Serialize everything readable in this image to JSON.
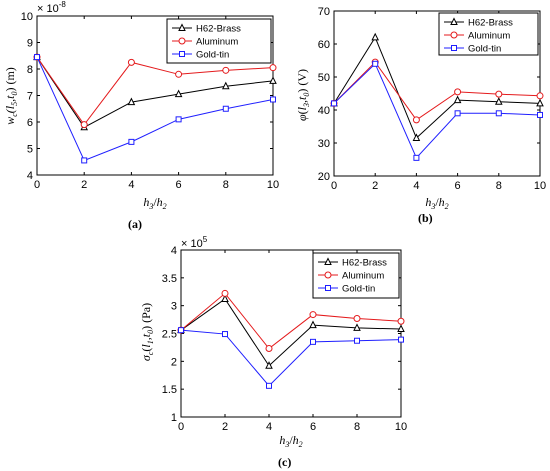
{
  "colors": {
    "H62-Brass": "#000000",
    "Aluminum": "#e41a1c",
    "Gold-tin": "#1f1fff"
  },
  "markers": {
    "H62-Brass": "triangle",
    "Aluminum": "circle",
    "Gold-tin": "square"
  },
  "chart_data": [
    {
      "type": "line",
      "caption": "(a)",
      "xlabel": "h3/h2",
      "ylabel": "wc(l5,t0) (m)",
      "multiplier": "× 10",
      "multiplier_exp": "-8",
      "x": [
        0,
        2,
        4,
        6,
        8,
        10
      ],
      "xticks": [
        "0",
        "2",
        "4",
        "6",
        "8",
        "10"
      ],
      "yticks": [
        "4",
        "5",
        "6",
        "7",
        "8",
        "9",
        "10"
      ],
      "xlim": [
        0,
        10
      ],
      "ylim": [
        4,
        10
      ],
      "legend": "top-right",
      "series": [
        {
          "name": "H62-Brass",
          "values": [
            8.45,
            5.8,
            6.75,
            7.05,
            7.35,
            7.55
          ]
        },
        {
          "name": "Aluminum",
          "values": [
            8.45,
            5.9,
            8.25,
            7.8,
            7.95,
            8.05
          ]
        },
        {
          "name": "Gold-tin",
          "values": [
            8.45,
            4.55,
            5.25,
            6.1,
            6.5,
            6.85
          ]
        }
      ]
    },
    {
      "type": "line",
      "caption": "(b)",
      "xlabel": "h3/h2",
      "ylabel": "φ(l3,t0) (V)",
      "x": [
        0,
        2,
        4,
        6,
        8,
        10
      ],
      "xticks": [
        "0",
        "2",
        "4",
        "6",
        "8",
        "10"
      ],
      "yticks": [
        "20",
        "30",
        "40",
        "50",
        "60",
        "70"
      ],
      "xlim": [
        0,
        10
      ],
      "ylim": [
        20,
        70
      ],
      "legend": "top-right",
      "series": [
        {
          "name": "H62-Brass",
          "values": [
            42,
            62,
            31.5,
            43,
            42.5,
            42
          ]
        },
        {
          "name": "Aluminum",
          "values": [
            42,
            54.5,
            37,
            45.5,
            44.8,
            44.3
          ]
        },
        {
          "name": "Gold-tin",
          "values": [
            42,
            54,
            25.5,
            39,
            39,
            38.5
          ]
        }
      ]
    },
    {
      "type": "line",
      "caption": "(c)",
      "xlabel": "h3/h2",
      "ylabel": "σc(l1,t0) (Pa)",
      "multiplier": "× 10",
      "multiplier_exp": "5",
      "x": [
        0,
        2,
        4,
        6,
        8,
        10
      ],
      "xticks": [
        "0",
        "2",
        "4",
        "6",
        "8",
        "10"
      ],
      "yticks": [
        "1",
        "1.5",
        "2",
        "2.5",
        "3",
        "3.5",
        "4"
      ],
      "xlim": [
        0,
        10
      ],
      "ylim": [
        1,
        4
      ],
      "legend": "top-right",
      "series": [
        {
          "name": "H62-Brass",
          "values": [
            2.56,
            3.12,
            1.92,
            2.65,
            2.6,
            2.58
          ]
        },
        {
          "name": "Aluminum",
          "values": [
            2.56,
            3.22,
            2.23,
            2.84,
            2.77,
            2.72
          ]
        },
        {
          "name": "Gold-tin",
          "values": [
            2.56,
            2.49,
            1.56,
            2.35,
            2.37,
            2.39
          ]
        }
      ]
    }
  ]
}
